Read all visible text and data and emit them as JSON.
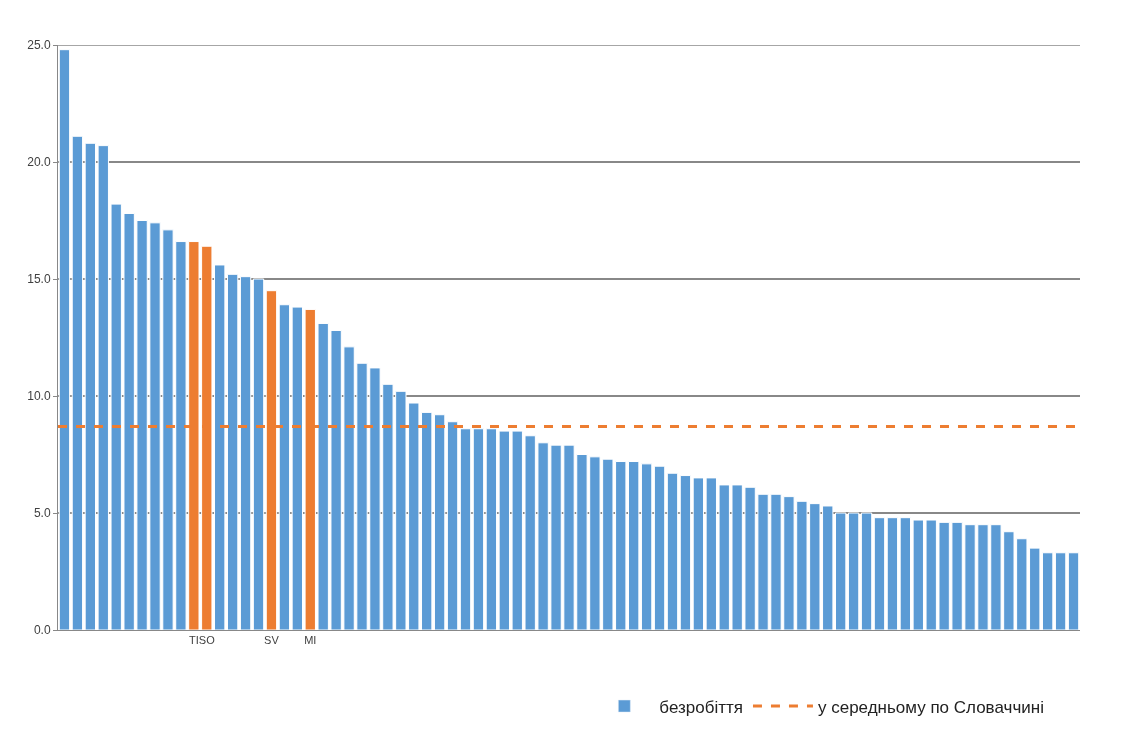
{
  "chart_data": {
    "type": "bar",
    "categories": [
      null,
      null,
      null,
      null,
      null,
      null,
      null,
      null,
      null,
      null,
      "TI",
      "SO",
      null,
      null,
      null,
      null,
      "SV",
      null,
      null,
      "MI",
      null,
      null,
      null,
      null,
      null,
      null,
      null,
      null,
      null,
      null,
      null,
      null,
      null,
      null,
      null,
      null,
      null,
      null,
      null,
      null,
      null,
      null,
      null,
      null,
      null,
      null,
      null,
      null,
      null,
      null,
      null,
      null,
      null,
      null,
      null,
      null,
      null,
      null,
      null,
      null,
      null,
      null,
      null,
      null,
      null,
      null,
      null,
      null,
      null,
      null,
      null,
      null,
      null,
      null,
      null,
      null,
      null,
      null,
      null
    ],
    "series": [
      {
        "name": "безробіття",
        "color": "#5b9bd5",
        "colors": [
          "#5b9bd5",
          "#5b9bd5",
          "#5b9bd5",
          "#5b9bd5",
          "#5b9bd5",
          "#5b9bd5",
          "#5b9bd5",
          "#5b9bd5",
          "#5b9bd5",
          "#5b9bd5",
          "#ed7d31",
          "#ed7d31",
          "#5b9bd5",
          "#5b9bd5",
          "#5b9bd5",
          "#5b9bd5",
          "#ed7d31",
          "#5b9bd5",
          "#5b9bd5",
          "#ed7d31",
          "#5b9bd5",
          "#5b9bd5",
          "#5b9bd5",
          "#5b9bd5",
          "#5b9bd5",
          "#5b9bd5",
          "#5b9bd5",
          "#5b9bd5",
          "#5b9bd5",
          "#5b9bd5",
          "#5b9bd5",
          "#5b9bd5",
          "#5b9bd5",
          "#5b9bd5",
          "#5b9bd5",
          "#5b9bd5",
          "#5b9bd5",
          "#5b9bd5",
          "#5b9bd5",
          "#5b9bd5",
          "#5b9bd5",
          "#5b9bd5",
          "#5b9bd5",
          "#5b9bd5",
          "#5b9bd5",
          "#5b9bd5",
          "#5b9bd5",
          "#5b9bd5",
          "#5b9bd5",
          "#5b9bd5",
          "#5b9bd5",
          "#5b9bd5",
          "#5b9bd5",
          "#5b9bd5",
          "#5b9bd5",
          "#5b9bd5",
          "#5b9bd5",
          "#5b9bd5",
          "#5b9bd5",
          "#5b9bd5",
          "#5b9bd5",
          "#5b9bd5",
          "#5b9bd5",
          "#5b9bd5",
          "#5b9bd5",
          "#5b9bd5",
          "#5b9bd5",
          "#5b9bd5",
          "#5b9bd5",
          "#5b9bd5",
          "#5b9bd5",
          "#5b9bd5",
          "#5b9bd5",
          "#5b9bd5",
          "#5b9bd5",
          "#5b9bd5",
          "#5b9bd5",
          "#5b9bd5",
          "#5b9bd5"
        ],
        "values": [
          24.8,
          21.1,
          20.8,
          20.7,
          18.2,
          17.8,
          17.5,
          17.4,
          17.1,
          16.6,
          16.6,
          16.4,
          15.6,
          15.2,
          15.1,
          15.0,
          14.5,
          13.9,
          13.8,
          13.7,
          13.1,
          12.8,
          12.1,
          11.4,
          11.2,
          10.5,
          10.2,
          9.7,
          9.3,
          9.2,
          8.9,
          8.6,
          8.6,
          8.6,
          8.5,
          8.5,
          8.3,
          8.0,
          7.9,
          7.9,
          7.5,
          7.4,
          7.3,
          7.2,
          7.2,
          7.1,
          7.0,
          6.7,
          6.6,
          6.5,
          6.5,
          6.2,
          6.2,
          6.1,
          5.8,
          5.8,
          5.7,
          5.5,
          5.4,
          5.3,
          5.0,
          5.0,
          5.0,
          4.8,
          4.8,
          4.8,
          4.7,
          4.7,
          4.6,
          4.6,
          4.5,
          4.5,
          4.5,
          4.2,
          3.9,
          3.5,
          3.3,
          3.3,
          3.3
        ]
      }
    ],
    "ref_lines": [
      {
        "axis": "y",
        "value": 8.7,
        "label": "у середньому по Словаччині",
        "color": "#ed7d31",
        "line_style": "dashed"
      }
    ],
    "ylim": [
      0,
      25
    ],
    "yticks": [
      {
        "value": 0,
        "label": "0.0"
      },
      {
        "value": 5,
        "label": "5.0"
      },
      {
        "value": 10,
        "label": "10.0"
      },
      {
        "value": 15,
        "label": "15.0"
      },
      {
        "value": 20,
        "label": "20.0"
      },
      {
        "value": 25,
        "label": "25.0"
      }
    ],
    "grid": "y",
    "legend": "bottom"
  }
}
